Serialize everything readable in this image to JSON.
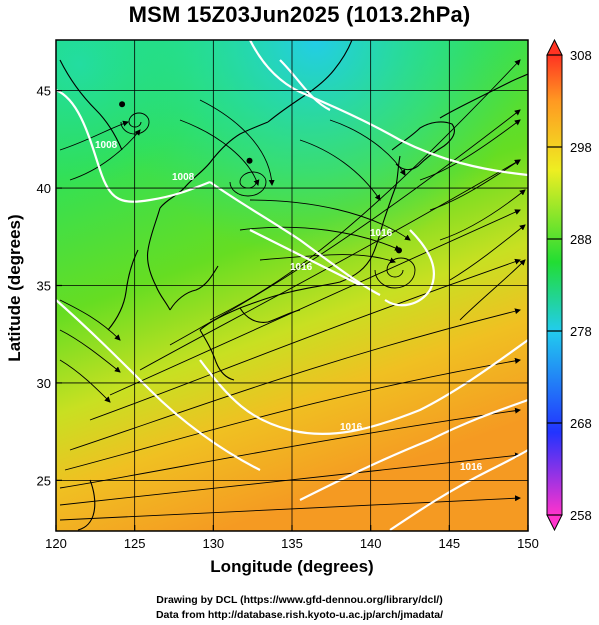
{
  "title": "MSM 15Z03Jun2025 (1013.2hPa)",
  "ylabel": "Latitude  (degrees)",
  "xlabel": "Longitude (degrees)",
  "credits": [
    "Drawing by DCL (https://www.gfd-dennou.org/library/dcl/)",
    "Data from http://database.rish.kyoto-u.ac.jp/arch/jmadata/"
  ],
  "chart_data": {
    "type": "heatmap",
    "title": "MSM 15Z03Jun2025 (1013.2hPa)",
    "xlabel": "Longitude (degrees)",
    "ylabel": "Latitude  (degrees)",
    "xlim": [
      120,
      150
    ],
    "ylim": [
      22.4,
      47.6
    ],
    "x_ticks": [
      120,
      125,
      130,
      135,
      140,
      145,
      150
    ],
    "y_ticks": [
      25,
      30,
      35,
      40,
      45
    ],
    "grid": true,
    "colorbar": {
      "range": [
        258,
        308
      ],
      "tick_values": [
        258,
        268,
        278,
        288,
        298,
        308
      ],
      "tick_labels": [
        "258",
        "268",
        "278",
        "288",
        "298",
        "308"
      ],
      "colors": [
        "#ff33cc",
        "#2233ff",
        "#22ccee",
        "#22dd33",
        "#eeee22",
        "#ff9922",
        "#ff3322"
      ],
      "extend": "both"
    },
    "contour_labels": [
      "1008",
      "1008",
      "1016",
      "1016",
      "1016",
      "1016"
    ],
    "vortex_centers": [
      {
        "lon": 124.2,
        "lat": 44.3
      },
      {
        "lon": 132.3,
        "lat": 41.4
      },
      {
        "lon": 141.8,
        "lat": 36.8
      }
    ]
  }
}
